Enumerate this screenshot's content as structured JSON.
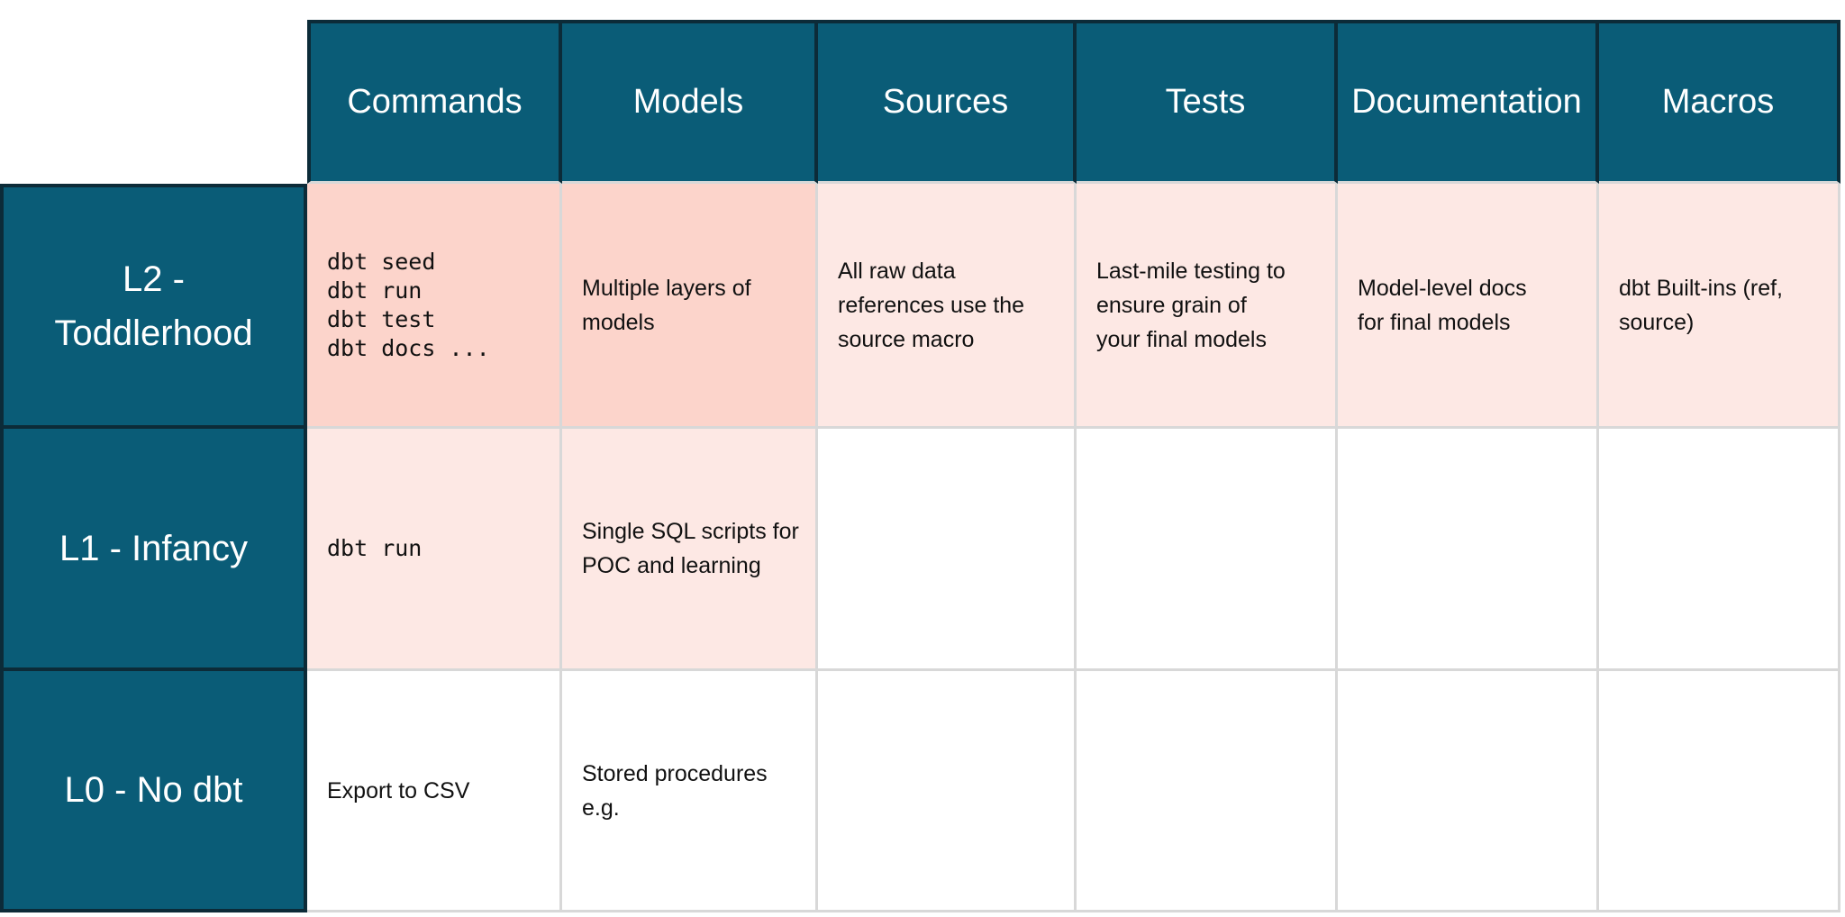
{
  "colors": {
    "teal": "#0a5c77",
    "dark_border": "#0c2b38",
    "pink_strong": "#fcd4cb",
    "pink_light": "#fde8e4",
    "gray_border": "#d8d8d8",
    "text_dark": "#111111"
  },
  "table": {
    "column_headers": [
      "Commands",
      "Models",
      "Sources",
      "Tests",
      "Documentation",
      "Macros"
    ],
    "rows": [
      {
        "label": "L2 -\nToddlerhood",
        "cells": [
          "dbt seed\ndbt run\ndbt test\ndbt docs ...",
          "Multiple layers of\nmodels",
          "All raw data\nreferences use the\nsource macro",
          "Last-mile testing to\nensure grain of\nyour final models",
          "Model-level docs\nfor final models",
          "dbt Built-ins (ref,\nsource)"
        ]
      },
      {
        "label": "L1 - Infancy",
        "cells": [
          "dbt run",
          "Single SQL scripts for\nPOC and learning",
          "",
          "",
          "",
          ""
        ]
      },
      {
        "label": "L0 - No dbt",
        "cells": [
          "Export to CSV",
          "Stored procedures\ne.g.",
          "",
          "",
          "",
          ""
        ]
      }
    ]
  }
}
